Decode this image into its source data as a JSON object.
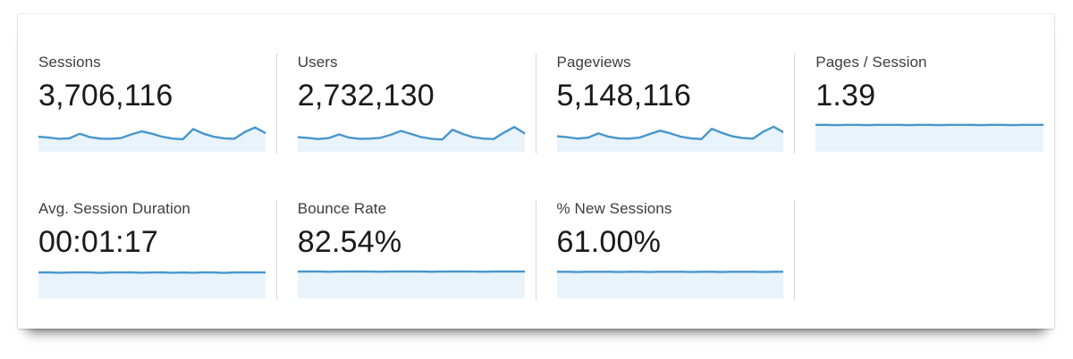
{
  "panel": {
    "name": "analytics-overview-metrics"
  },
  "colors": {
    "spark_line": "#4796cc",
    "spark_fill": "#e8f3fb",
    "divider": "#d9d9d9",
    "label_text": "#3c3c3c",
    "value_text": "#1a1a1a"
  },
  "metrics": [
    {
      "id": "sessions",
      "label": "Sessions",
      "value": "3,706,116",
      "sparkline": {
        "type": "area",
        "values": [
          42,
          38,
          33,
          35,
          55,
          40,
          34,
          33,
          36,
          52,
          65,
          55,
          42,
          34,
          31,
          75,
          55,
          42,
          35,
          33,
          62,
          82,
          58
        ]
      }
    },
    {
      "id": "users",
      "label": "Users",
      "value": "2,732,130",
      "sparkline": {
        "type": "area",
        "values": [
          40,
          37,
          32,
          36,
          52,
          38,
          33,
          34,
          37,
          50,
          67,
          54,
          40,
          33,
          30,
          72,
          54,
          40,
          34,
          32,
          60,
          84,
          56
        ]
      }
    },
    {
      "id": "pageviews",
      "label": "Pageviews",
      "value": "5,148,116",
      "sparkline": {
        "type": "area",
        "values": [
          44,
          40,
          34,
          38,
          56,
          42,
          35,
          34,
          38,
          54,
          68,
          56,
          42,
          35,
          32,
          76,
          58,
          44,
          36,
          34,
          64,
          85,
          60
        ]
      }
    },
    {
      "id": "pages-per-session",
      "label": "Pages / Session",
      "value": "1.39",
      "sparkline": {
        "type": "area",
        "values": [
          93,
          93,
          92,
          93,
          93,
          92,
          93,
          93,
          93,
          92,
          93,
          93,
          92,
          93,
          93,
          93,
          92,
          93,
          93,
          92,
          93,
          93,
          93
        ]
      }
    },
    {
      "id": "avg-session-duration",
      "label": "Avg. Session Duration",
      "value": "00:01:17",
      "sparkline": {
        "type": "area",
        "values": [
          88,
          89,
          87,
          88,
          89,
          88,
          86,
          88,
          88,
          89,
          87,
          88,
          89,
          87,
          88,
          87,
          89,
          88,
          86,
          88,
          89,
          88,
          88
        ]
      }
    },
    {
      "id": "bounce-rate",
      "label": "Bounce Rate",
      "value": "82.54%",
      "sparkline": {
        "type": "area",
        "values": [
          92,
          92,
          92,
          91,
          92,
          92,
          92,
          92,
          91,
          92,
          92,
          92,
          92,
          91,
          92,
          92,
          92,
          92,
          91,
          92,
          92,
          92,
          92
        ]
      }
    },
    {
      "id": "percent-new-sessions",
      "label": "% New Sessions",
      "value": "61.00%",
      "sparkline": {
        "type": "area",
        "values": [
          91,
          91,
          90,
          91,
          91,
          91,
          90,
          91,
          91,
          90,
          91,
          91,
          91,
          90,
          91,
          91,
          90,
          91,
          91,
          91,
          90,
          91,
          91
        ]
      }
    }
  ]
}
